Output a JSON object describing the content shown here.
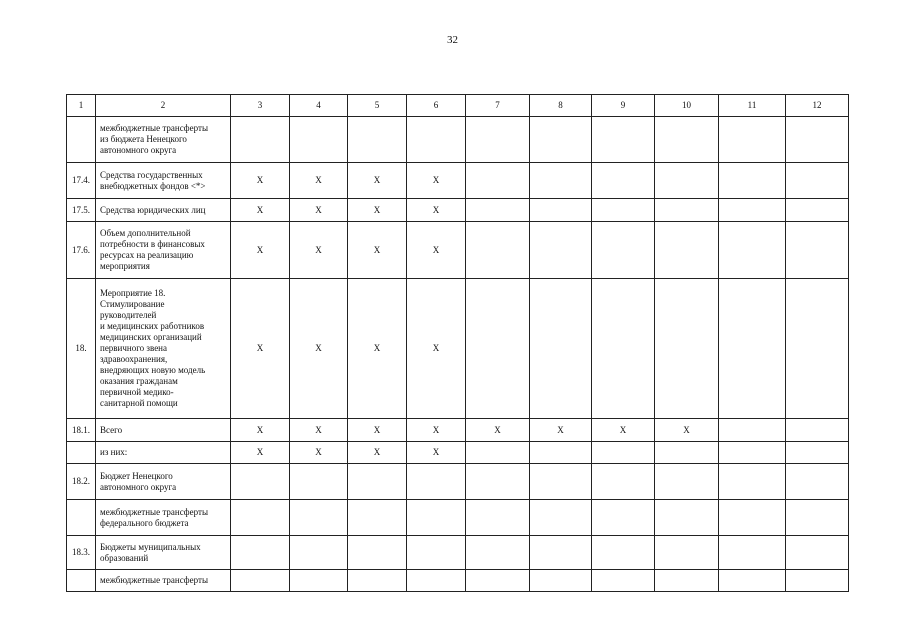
{
  "page_number": "32",
  "header": [
    "1",
    "2",
    "3",
    "4",
    "5",
    "6",
    "7",
    "8",
    "9",
    "10",
    "11",
    "12"
  ],
  "rows": [
    {
      "num": "",
      "label": "межбюджетные трансферты\nиз бюджета Ненецкого\nавтономного округа",
      "cells": [
        "",
        "",
        "",
        "",
        "",
        "",
        "",
        "",
        "",
        ""
      ]
    },
    {
      "num": "17.4.",
      "label": "Средства государственных\nвнебюджетных фондов <*>",
      "cells": [
        "Х",
        "Х",
        "Х",
        "Х",
        "",
        "",
        "",
        "",
        "",
        ""
      ]
    },
    {
      "num": "17.5.",
      "label": "Средства юридических лиц",
      "cells": [
        "Х",
        "Х",
        "Х",
        "Х",
        "",
        "",
        "",
        "",
        "",
        ""
      ]
    },
    {
      "num": "17.6.",
      "label": "Объем дополнительной\nпотребности в финансовых\nресурсах на реализацию\nмероприятия",
      "cells": [
        "Х",
        "Х",
        "Х",
        "Х",
        "",
        "",
        "",
        "",
        "",
        ""
      ]
    },
    {
      "num": "18.",
      "label": "Мероприятие 18.\nСтимулирование\nруководителей\nи медицинских работников\nмедицинских организаций\nпервичного звена\nздравоохранения,\nвнедряющих новую модель\nоказания гражданам\nпервичной медико-\nсанитарной помощи",
      "cells": [
        "Х",
        "Х",
        "Х",
        "Х",
        "",
        "",
        "",
        "",
        "",
        ""
      ]
    },
    {
      "num": "18.1.",
      "label": "Всего",
      "cells": [
        "Х",
        "Х",
        "Х",
        "Х",
        "Х",
        "Х",
        "Х",
        "Х",
        "",
        ""
      ]
    },
    {
      "num": "",
      "label": "из них:",
      "cells": [
        "Х",
        "Х",
        "Х",
        "Х",
        "",
        "",
        "",
        "",
        "",
        ""
      ]
    },
    {
      "num": "18.2.",
      "label": "Бюджет Ненецкого\nавтономного округа",
      "cells": [
        "",
        "",
        "",
        "",
        "",
        "",
        "",
        "",
        "",
        ""
      ]
    },
    {
      "num": "",
      "label": "межбюджетные трансферты\nфедерального бюджета",
      "cells": [
        "",
        "",
        "",
        "",
        "",
        "",
        "",
        "",
        "",
        ""
      ]
    },
    {
      "num": "18.3.",
      "label": "Бюджеты муниципальных\nобразований",
      "cells": [
        "",
        "",
        "",
        "",
        "",
        "",
        "",
        "",
        "",
        ""
      ]
    },
    {
      "num": "",
      "label": "межбюджетные трансферты",
      "cells": [
        "",
        "",
        "",
        "",
        "",
        "",
        "",
        "",
        "",
        ""
      ]
    }
  ]
}
